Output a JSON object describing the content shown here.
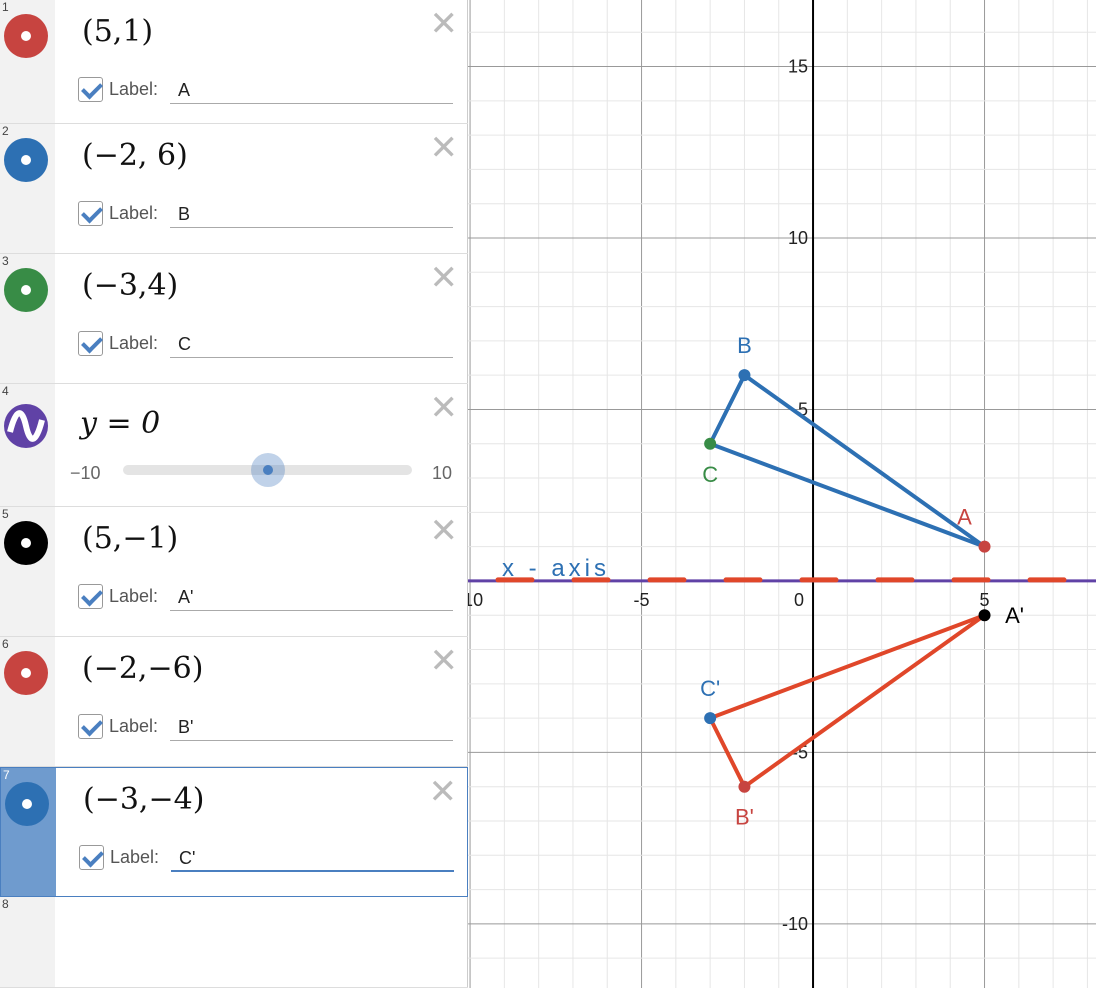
{
  "expressions": [
    {
      "index": "1",
      "type": "point",
      "latex": "(5,1)",
      "color": "#c74440",
      "label_enabled": true,
      "label_text": "Label:",
      "label_value": "A"
    },
    {
      "index": "2",
      "type": "point",
      "latex": "(−2, 6)",
      "color": "#2d70b3",
      "label_enabled": true,
      "label_text": "Label:",
      "label_value": "B"
    },
    {
      "index": "3",
      "type": "point",
      "latex": "(−3,4)",
      "color": "#388c46",
      "label_enabled": true,
      "label_text": "Label:",
      "label_value": "C"
    },
    {
      "index": "4",
      "type": "slider",
      "latex": "y = 0",
      "color": "#6042a6",
      "slider_min": "−10",
      "slider_max": "10",
      "slider_value": 0
    },
    {
      "index": "5",
      "type": "point",
      "latex": "(5,−1)",
      "color": "#000000",
      "label_enabled": true,
      "label_text": "Label:",
      "label_value": "A'"
    },
    {
      "index": "6",
      "type": "point",
      "latex": "(−2,−6)",
      "color": "#c74440",
      "label_enabled": true,
      "label_text": "Label:",
      "label_value": "B'"
    },
    {
      "index": "7",
      "type": "point",
      "latex": "(−3,−4)",
      "color": "#2d70b3",
      "label_enabled": true,
      "label_text": "Label:",
      "label_value": "C'",
      "selected": true
    },
    {
      "index": "8",
      "type": "empty"
    }
  ],
  "icons": {
    "close": "close-x-icon",
    "point": "point-dot-icon",
    "function": "wave-icon",
    "checkbox": "checkmark-icon"
  },
  "graph": {
    "xlim": [
      -10.06,
      8.25
    ],
    "ylim": [
      -11.87,
      16.94
    ],
    "x_ticks": [
      "-10",
      "-5",
      "0",
      "5"
    ],
    "x_tick_values": [
      -10,
      -5,
      0,
      5
    ],
    "y_ticks": [
      "15",
      "10",
      "5",
      "-5",
      "-10"
    ],
    "y_tick_values": [
      15,
      10,
      5,
      -5,
      -10
    ],
    "line_color": "#6042a6",
    "dash_color": "#e0472a",
    "annotation": "x - axis",
    "triangles": [
      {
        "points": [
          [
            5,
            1
          ],
          [
            -2,
            6
          ],
          [
            -3,
            4
          ]
        ],
        "color": "#2d70b3"
      },
      {
        "points": [
          [
            5,
            -1
          ],
          [
            -2,
            -6
          ],
          [
            -3,
            -4
          ]
        ],
        "color": "#e0472a"
      }
    ],
    "points": [
      {
        "x": 5,
        "y": 1,
        "label": "A",
        "color": "#c74440",
        "label_color": "#c74440"
      },
      {
        "x": -2,
        "y": 6,
        "label": "B",
        "color": "#2d70b3",
        "label_color": "#2d70b3"
      },
      {
        "x": -3,
        "y": 4,
        "label": "C",
        "color": "#388c46",
        "label_color": "#388c46"
      },
      {
        "x": 5,
        "y": -1,
        "label": "A'",
        "color": "#000000",
        "label_color": "#000000"
      },
      {
        "x": -2,
        "y": -6,
        "label": "B'",
        "color": "#c74440",
        "label_color": "#c74440"
      },
      {
        "x": -3,
        "y": -4,
        "label": "C'",
        "color": "#2d70b3",
        "label_color": "#2d70b3"
      }
    ]
  }
}
